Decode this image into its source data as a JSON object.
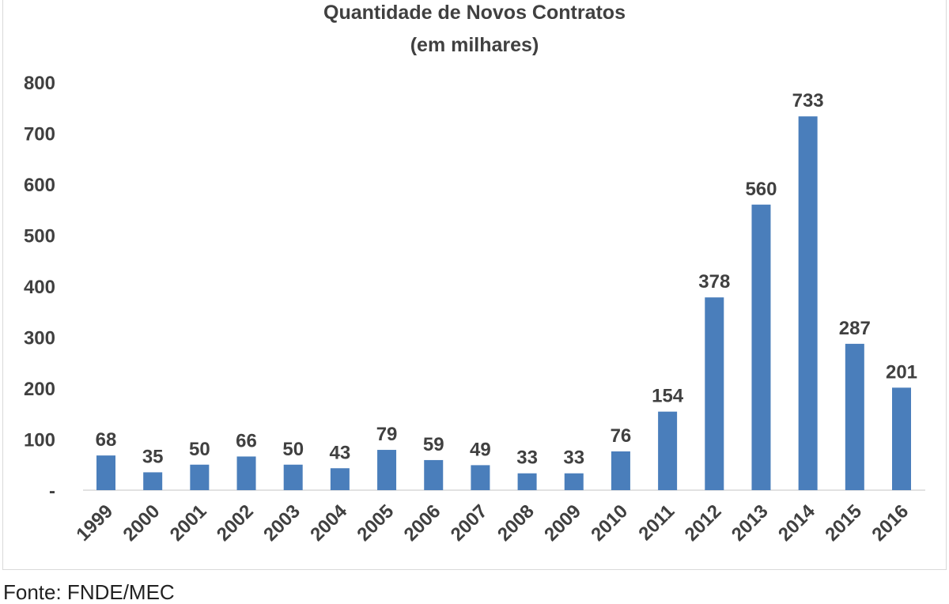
{
  "chart_data": {
    "type": "bar",
    "title": "Quantidade de Novos Contratos",
    "subtitle": "(em milhares)",
    "categories": [
      "1999",
      "2000",
      "2001",
      "2002",
      "2003",
      "2004",
      "2005",
      "2006",
      "2007",
      "2008",
      "2009",
      "2010",
      "2011",
      "2012",
      "2013",
      "2014",
      "2015",
      "2016"
    ],
    "values": [
      68,
      35,
      50,
      66,
      50,
      43,
      79,
      59,
      49,
      33,
      33,
      76,
      154,
      378,
      560,
      733,
      287,
      201
    ],
    "ylim": [
      0,
      800
    ],
    "yticks": [
      "-",
      "100",
      "200",
      "300",
      "400",
      "500",
      "600",
      "700",
      "800"
    ],
    "grid": false,
    "legend": "none",
    "bar_color": "#4a7ebb",
    "data_labels": true
  },
  "source": "Fonte: FNDE/MEC"
}
